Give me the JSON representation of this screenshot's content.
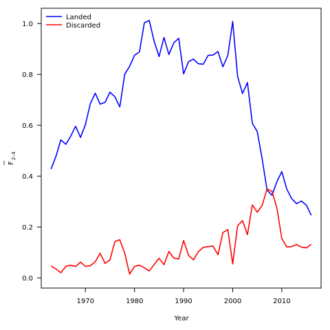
{
  "chart_data": {
    "type": "line",
    "title": "",
    "xlabel": "Year",
    "ylabel_main": "F",
    "ylabel_sub": "2–4",
    "xlim": [
      1961,
      2018
    ],
    "ylim": [
      -0.04,
      1.06
    ],
    "x_ticks": [
      1970,
      1980,
      1990,
      2000,
      2010
    ],
    "y_ticks": [
      0.0,
      0.2,
      0.4,
      0.6,
      0.8,
      1.0
    ],
    "y_tick_labels": [
      "0.0",
      "0.2",
      "0.4",
      "0.6",
      "0.8",
      "1.0"
    ],
    "grid": false,
    "legend_position": "top-left",
    "x": [
      1963,
      1964,
      1965,
      1966,
      1967,
      1968,
      1969,
      1970,
      1971,
      1972,
      1973,
      1974,
      1975,
      1976,
      1977,
      1978,
      1979,
      1980,
      1981,
      1982,
      1983,
      1984,
      1985,
      1986,
      1987,
      1988,
      1989,
      1990,
      1991,
      1992,
      1993,
      1994,
      1995,
      1996,
      1997,
      1998,
      1999,
      2000,
      2001,
      2002,
      2003,
      2004,
      2005,
      2006,
      2007,
      2008,
      2009,
      2010,
      2011,
      2012,
      2013,
      2014,
      2015,
      2016
    ],
    "series": [
      {
        "name": "Landed",
        "color": "#0000ff",
        "values": [
          0.428,
          0.478,
          0.543,
          0.525,
          0.557,
          0.596,
          0.552,
          0.603,
          0.685,
          0.726,
          0.683,
          0.69,
          0.73,
          0.712,
          0.672,
          0.8,
          0.832,
          0.875,
          0.888,
          1.003,
          1.012,
          0.93,
          0.87,
          0.945,
          0.878,
          0.924,
          0.942,
          0.802,
          0.85,
          0.86,
          0.842,
          0.84,
          0.875,
          0.876,
          0.89,
          0.83,
          0.874,
          1.008,
          0.792,
          0.725,
          0.768,
          0.608,
          0.575,
          0.468,
          0.345,
          0.325,
          0.378,
          0.418,
          0.35,
          0.312,
          0.292,
          0.302,
          0.286,
          0.246
        ]
      },
      {
        "name": "Discarded",
        "color": "#ff0000",
        "values": [
          0.047,
          0.035,
          0.02,
          0.045,
          0.05,
          0.045,
          0.062,
          0.045,
          0.048,
          0.063,
          0.097,
          0.057,
          0.071,
          0.143,
          0.15,
          0.097,
          0.015,
          0.045,
          0.05,
          0.04,
          0.027,
          0.053,
          0.077,
          0.052,
          0.104,
          0.078,
          0.074,
          0.147,
          0.089,
          0.071,
          0.103,
          0.12,
          0.123,
          0.125,
          0.091,
          0.178,
          0.19,
          0.055,
          0.205,
          0.225,
          0.17,
          0.287,
          0.258,
          0.285,
          0.35,
          0.34,
          0.275,
          0.155,
          0.122,
          0.123,
          0.131,
          0.121,
          0.118,
          0.132
        ]
      }
    ]
  }
}
